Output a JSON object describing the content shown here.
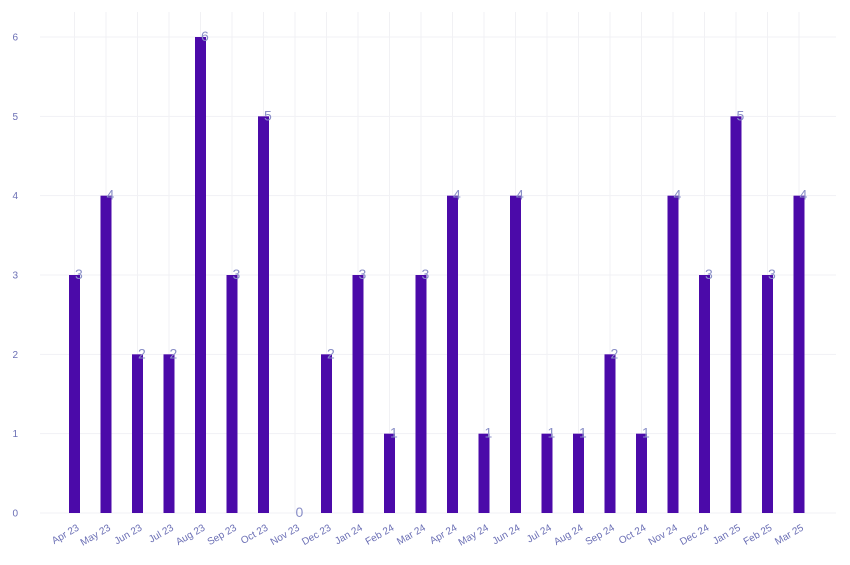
{
  "chart_data": {
    "type": "bar",
    "title": "",
    "xlabel": "",
    "ylabel": "",
    "ylim": [
      0,
      6
    ],
    "yticks": [
      0,
      1,
      2,
      3,
      4,
      5,
      6
    ],
    "grid": true,
    "categories": [
      "Apr 23",
      "May 23",
      "Jun 23",
      "Jul 23",
      "Aug 23",
      "Sep 23",
      "Oct 23",
      "Nov 23",
      "Dec 23",
      "Jan 24",
      "Feb 24",
      "Mar 24",
      "Apr 24",
      "May 24",
      "Jun 24",
      "Jul 24",
      "Aug 24",
      "Sep 24",
      "Oct 24",
      "Nov 24",
      "Dec 24",
      "Jan 25",
      "Feb 25",
      "Mar 25"
    ],
    "values": [
      3,
      4,
      2,
      2,
      6,
      3,
      5,
      0,
      2,
      3,
      1,
      3,
      4,
      1,
      4,
      1,
      1,
      2,
      1,
      4,
      3,
      5,
      3,
      4
    ],
    "colors": {
      "bar": "#4b0aa9",
      "label": "#8a8fc8",
      "tick": "#6b6fb5",
      "grid": "#f1f1f4"
    }
  }
}
